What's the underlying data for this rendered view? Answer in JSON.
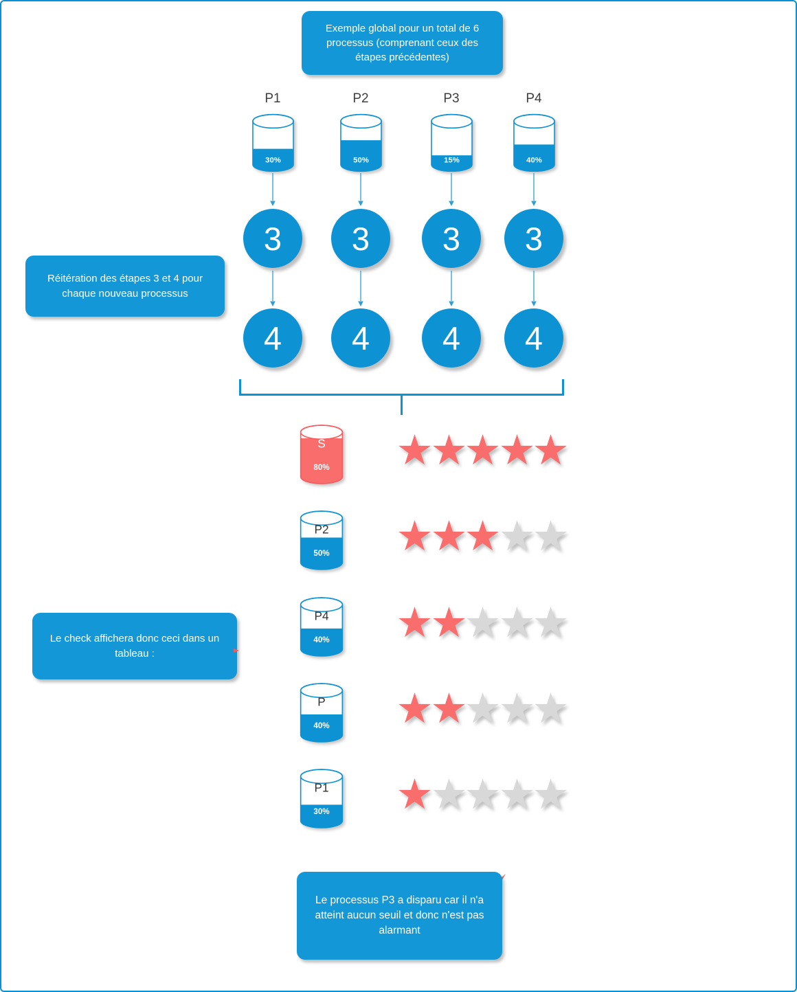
{
  "title_callout": {
    "text": "Exemple global pour un total de 6 processus (comprenant ceux des étapes précédentes)"
  },
  "reiteration_callout": {
    "text": "Réitération des étapes 3 et 4 pour chaque nouveau processus"
  },
  "check_callout": {
    "text": "Le check affichera donc ceci dans un tableau :"
  },
  "bottom_callout": {
    "text": "Le processus P3 a disparu car il n'a atteint aucun seuil et donc n'est pas alarmant"
  },
  "colors": {
    "shape_blue": "#0D93D4",
    "callout_blue": "#1397D7",
    "alert_red": "#F96D6D",
    "alert_red_stroke": "#F75B5B",
    "star_gray": "#D8D8D8",
    "connector_blue": "#2B9FD9",
    "page_border_blue": "#0A90D6"
  },
  "process_columns": [
    {
      "label": "P1",
      "percent": 30,
      "percent_label": "30%",
      "step3": "3",
      "step4": "4"
    },
    {
      "label": "P2",
      "percent": 50,
      "percent_label": "50%",
      "step3": "3",
      "step4": "4"
    },
    {
      "label": "P3",
      "percent": 15,
      "percent_label": "15%",
      "step3": "3",
      "step4": "4"
    },
    {
      "label": "P4",
      "percent": 40,
      "percent_label": "40%",
      "step3": "3",
      "step4": "4"
    }
  ],
  "result_table": {
    "max_stars": 5,
    "rows": [
      {
        "label": "S",
        "percent": 80,
        "percent_label": "80%",
        "stars": 5,
        "color": "red"
      },
      {
        "label": "P2",
        "percent": 50,
        "percent_label": "50%",
        "stars": 3,
        "color": "blue"
      },
      {
        "label": "P4",
        "percent": 40,
        "percent_label": "40%",
        "stars": 2,
        "color": "blue"
      },
      {
        "label": "P",
        "percent": 40,
        "percent_label": "40%",
        "stars": 2,
        "color": "blue"
      },
      {
        "label": "P1",
        "percent": 30,
        "percent_label": "30%",
        "stars": 1,
        "color": "blue"
      }
    ]
  }
}
